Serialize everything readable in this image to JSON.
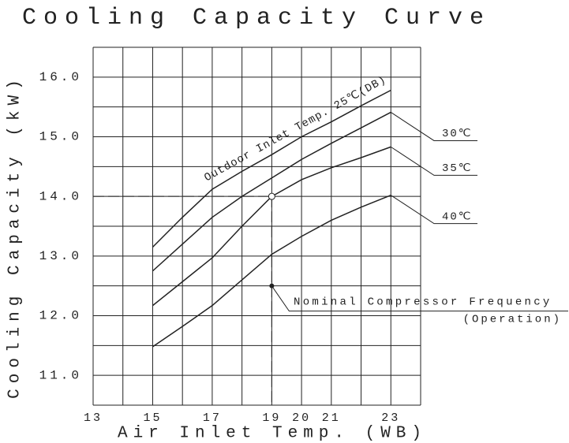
{
  "chart_data": {
    "type": "line",
    "title": "Cooling Capacity Curve",
    "x_label": "Air Inlet Temp. (WB)",
    "y_label": "Cooling Capacity (kW)",
    "x": [
      15,
      16,
      17,
      18,
      19,
      20,
      21,
      22,
      23
    ],
    "series": [
      {
        "name": "Outdoor Inlet Temp. 25℃(DB)",
        "color": "#222222",
        "values": [
          13.15,
          13.65,
          14.12,
          14.42,
          14.7,
          15.0,
          15.25,
          15.52,
          15.78
        ]
      },
      {
        "name": "30℃",
        "color": "#222222",
        "values": [
          12.75,
          13.2,
          13.65,
          14.0,
          14.31,
          14.62,
          14.89,
          15.15,
          15.41
        ]
      },
      {
        "name": "35℃",
        "color": "#222222",
        "values": [
          12.17,
          12.57,
          12.97,
          13.5,
          14.0,
          14.28,
          14.48,
          14.65,
          14.83
        ]
      },
      {
        "name": "40℃",
        "color": "#222222",
        "values": [
          11.48,
          11.82,
          12.17,
          12.6,
          13.03,
          13.33,
          13.6,
          13.82,
          14.02
        ]
      }
    ],
    "points": [
      {
        "x": 19,
        "y": 14
      },
      {
        "x": 19,
        "y": 12.5,
        "label": "Nominal Compressor Frequency",
        "sublabel": "(Operation)"
      }
    ],
    "xlim": [
      13,
      24
    ],
    "ylim": [
      10.5,
      16.5
    ],
    "xticks": [
      13,
      15,
      17,
      19,
      20,
      21,
      23
    ],
    "yticks": [
      {
        "value": 11,
        "label": "11.0"
      },
      {
        "value": 12,
        "label": "12.0"
      },
      {
        "value": 13,
        "label": "13.0"
      },
      {
        "value": 14,
        "label": "14.0"
      },
      {
        "value": 15,
        "label": "15.0"
      },
      {
        "value": 16,
        "label": "16.0"
      }
    ],
    "xgrid": [
      13,
      14,
      15,
      16,
      17,
      18,
      19,
      20,
      21,
      22,
      23,
      24
    ],
    "ygrid": [
      10.5,
      11,
      11.5,
      12,
      12.5,
      13,
      13.5,
      14,
      14.5,
      15,
      15.5,
      16,
      16.5
    ]
  }
}
